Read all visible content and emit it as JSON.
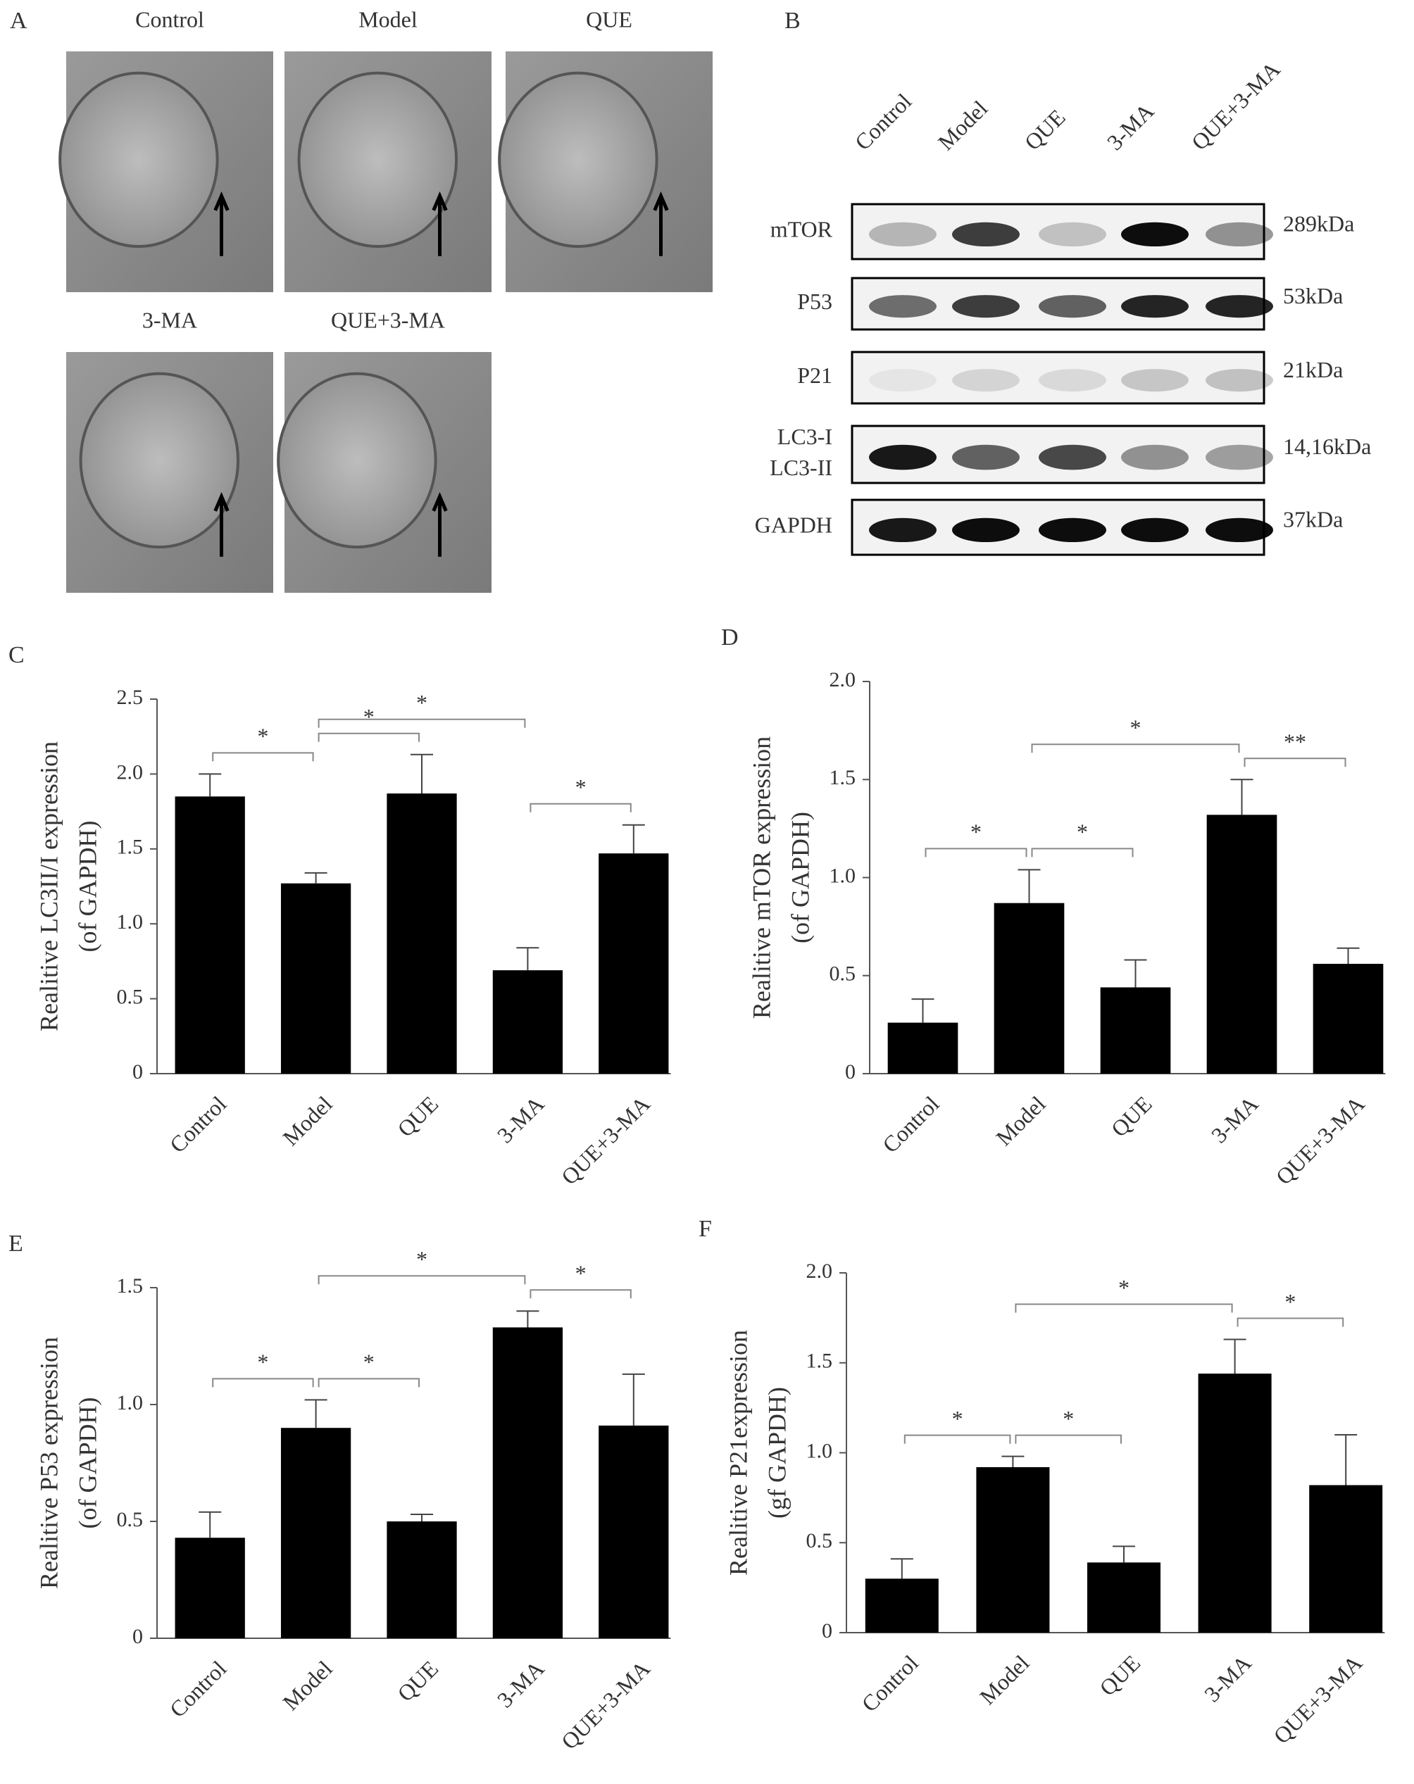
{
  "panel_a": {
    "label": "A",
    "images": [
      "Control",
      "Model",
      "QUE",
      "3-MA",
      "QUE+3-MA"
    ]
  },
  "panel_b": {
    "label": "B",
    "lanes": [
      "Control",
      "Model",
      "QUE",
      "3-MA",
      "QUE+3-MA"
    ],
    "rows": [
      {
        "labels": [
          "mTOR"
        ],
        "size": "289kDa"
      },
      {
        "labels": [
          "P53"
        ],
        "size": "53kDa"
      },
      {
        "labels": [
          "P21"
        ],
        "size": "21kDa"
      },
      {
        "labels": [
          "LC3-I",
          "LC3-II"
        ],
        "size": "14,16kDa"
      },
      {
        "labels": [
          "GAPDH"
        ],
        "size": "37kDa"
      }
    ]
  },
  "chart_data": [
    {
      "type": "bar",
      "panel": "C",
      "y_label": [
        "Realitive LC3II/I expression",
        "(of GAPDH)"
      ],
      "categories": [
        "Control",
        "Model",
        "QUE",
        "3-MA",
        "QUE+3-MA"
      ],
      "series": [
        {
          "color": "#000000",
          "values": [
            1.85,
            1.27,
            1.87,
            0.69,
            1.47
          ],
          "errors": [
            0.15,
            0.07,
            0.26,
            0.15,
            0.19
          ]
        }
      ],
      "ylim": [
        0,
        2.5
      ],
      "yticks": [
        0,
        0.5,
        {
          "value": 1,
          "label": "1.0"
        },
        1.5,
        {
          "value": 2,
          "label": "2.0"
        },
        2.5
      ],
      "brackets": [
        {
          "span": [
            0,
            1
          ],
          "label": "*"
        },
        {
          "span": [
            1,
            2
          ],
          "label": "*"
        },
        {
          "span": [
            1,
            3
          ],
          "label": "*"
        },
        {
          "span": [
            3,
            4
          ],
          "label": "*"
        }
      ]
    },
    {
      "type": "bar",
      "panel": "D",
      "y_label": [
        "Realitive mTOR expression",
        "(of GAPDH)"
      ],
      "categories": [
        "Control",
        "Model",
        "QUE",
        "3-MA",
        "QUE+3-MA"
      ],
      "series": [
        {
          "color": "#000000",
          "values": [
            0.26,
            0.87,
            0.44,
            1.32,
            0.56
          ],
          "errors": [
            0.12,
            0.17,
            0.14,
            0.18,
            0.08
          ]
        }
      ],
      "ylim": [
        0,
        2
      ],
      "yticks": [
        0,
        0.5,
        {
          "value": 1,
          "label": "1.0"
        },
        1.5,
        {
          "value": 2,
          "label": "2.0"
        }
      ],
      "brackets": [
        {
          "span": [
            0,
            1
          ],
          "label": "*"
        },
        {
          "span": [
            1,
            2
          ],
          "label": "*"
        },
        {
          "span": [
            1,
            3
          ],
          "label": "*"
        },
        {
          "span": [
            3,
            4
          ],
          "label": "**"
        }
      ]
    },
    {
      "type": "bar",
      "panel": "E",
      "y_label": [
        "Realitive P53 expression",
        "(of GAPDH)"
      ],
      "categories": [
        "Control",
        "Model",
        "QUE",
        "3-MA",
        "QUE+3-MA"
      ],
      "series": [
        {
          "color": "#000000",
          "values": [
            0.43,
            0.9,
            0.5,
            1.33,
            0.91
          ],
          "errors": [
            0.11,
            0.12,
            0.03,
            0.07,
            0.22
          ]
        }
      ],
      "ylim": [
        0,
        1.5
      ],
      "yticks": [
        0,
        0.5,
        {
          "value": 1,
          "label": "1.0"
        },
        1.5
      ],
      "brackets": [
        {
          "span": [
            0,
            1
          ],
          "label": "*"
        },
        {
          "span": [
            1,
            2
          ],
          "label": "*"
        },
        {
          "span": [
            1,
            3
          ],
          "label": "*"
        },
        {
          "span": [
            3,
            4
          ],
          "label": "*"
        }
      ]
    },
    {
      "type": "bar",
      "panel": "F",
      "y_label": [
        "Realitive P21expression",
        "(gf GAPDH)"
      ],
      "categories": [
        "Control",
        "Model",
        "QUE",
        "3-MA",
        "QUE+3-MA"
      ],
      "series": [
        {
          "color": "#000000",
          "values": [
            0.3,
            0.92,
            0.39,
            1.44,
            0.82
          ],
          "errors": [
            0.11,
            0.06,
            0.09,
            0.19,
            0.28
          ]
        }
      ],
      "ylim": [
        0,
        2
      ],
      "yticks": [
        0,
        0.5,
        {
          "value": 1,
          "label": "1.0"
        },
        1.5,
        {
          "value": 2,
          "label": "2.0"
        }
      ],
      "brackets": [
        {
          "span": [
            0,
            1
          ],
          "label": "*"
        },
        {
          "span": [
            1,
            2
          ],
          "label": "*"
        },
        {
          "span": [
            1,
            3
          ],
          "label": "*"
        },
        {
          "span": [
            3,
            4
          ],
          "label": "*"
        }
      ]
    }
  ]
}
